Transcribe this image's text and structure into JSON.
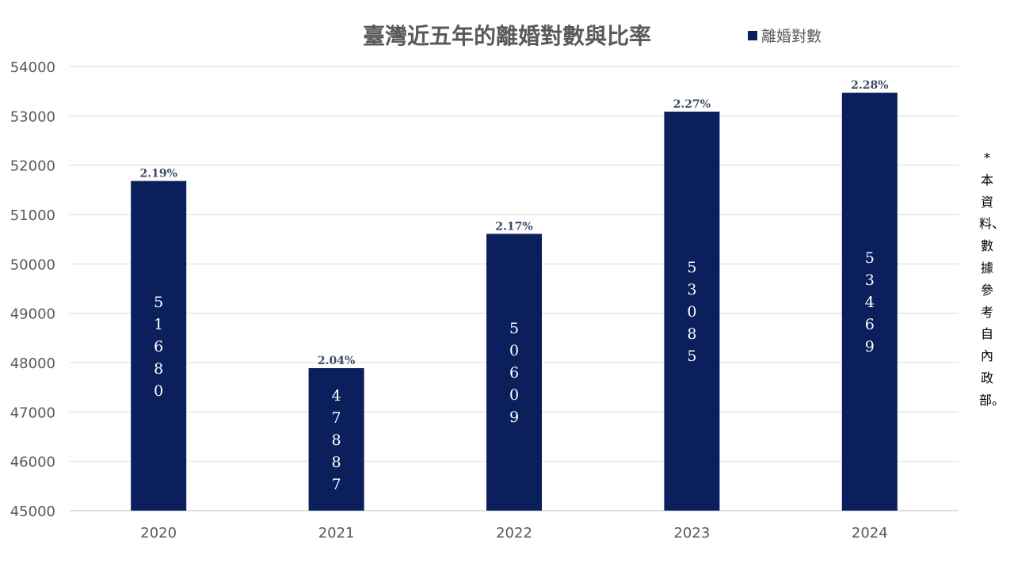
{
  "chart_data": {
    "type": "bar",
    "title": "臺灣近五年的離婚對數與比率",
    "categories": [
      "2020",
      "2021",
      "2022",
      "2023",
      "2024"
    ],
    "series": [
      {
        "name": "離婚對數",
        "values": [
          51680,
          47887,
          50609,
          53085,
          53469
        ],
        "rates": [
          "2.19%",
          "2.04%",
          "2.17%",
          "2.27%",
          "2.28%"
        ],
        "color": "#0a1f5c"
      }
    ],
    "xlabel": "",
    "ylabel": "",
    "ylim": [
      45000,
      54000
    ],
    "yticks": [
      "45000",
      "46000",
      "47000",
      "48000",
      "49000",
      "50000",
      "51000",
      "52000",
      "53000",
      "54000"
    ],
    "grid": true,
    "legend_position": "top-right",
    "value_label_color": "#ffffff",
    "rate_label_color": "#3b4a66",
    "note": "*本資料、數據參考自內政部。"
  }
}
